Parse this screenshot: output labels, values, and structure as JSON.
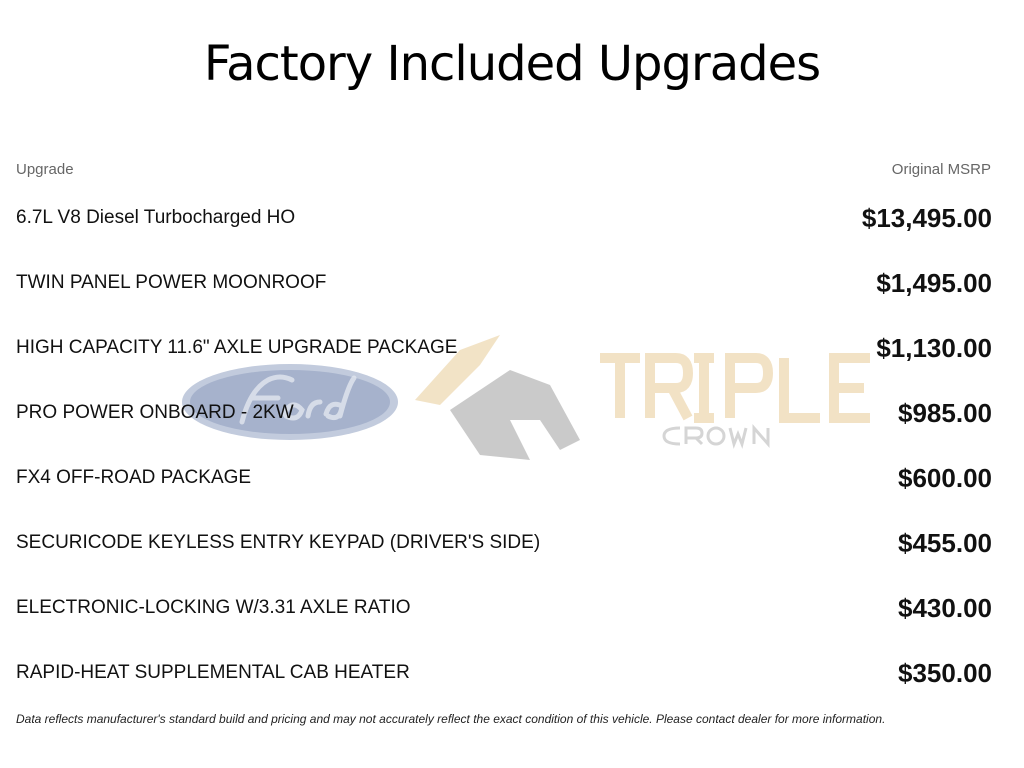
{
  "title": "Factory Included Upgrades",
  "watermark": {
    "brand": "Ford",
    "dealer": "TRIPLE",
    "dealer_sub": "CROWN",
    "icon": "horse-head-icon"
  },
  "table": {
    "headers": {
      "upgrade": "Upgrade",
      "msrp": "Original MSRP"
    },
    "rows": [
      {
        "name": "6.7L V8 Diesel Turbocharged HO",
        "price": "$13,495.00"
      },
      {
        "name": "TWIN PANEL POWER MOONROOF",
        "price": "$1,495.00"
      },
      {
        "name": "HIGH CAPACITY 11.6\" AXLE UPGRADE PACKAGE",
        "price": "$1,130.00"
      },
      {
        "name": "PRO POWER ONBOARD - 2KW",
        "price": "$985.00"
      },
      {
        "name": "FX4 OFF-ROAD PACKAGE",
        "price": "$600.00"
      },
      {
        "name": "SECURICODE KEYLESS ENTRY KEYPAD (DRIVER'S SIDE)",
        "price": "$455.00"
      },
      {
        "name": "ELECTRONIC-LOCKING W/3.31 AXLE RATIO",
        "price": "$430.00"
      },
      {
        "name": "RAPID-HEAT SUPPLEMENTAL CAB HEATER",
        "price": "$350.00"
      }
    ]
  },
  "disclaimer": "Data reflects manufacturer's standard build and pricing and may not accurately reflect the exact condition of this vehicle. Please contact dealer for more information."
}
